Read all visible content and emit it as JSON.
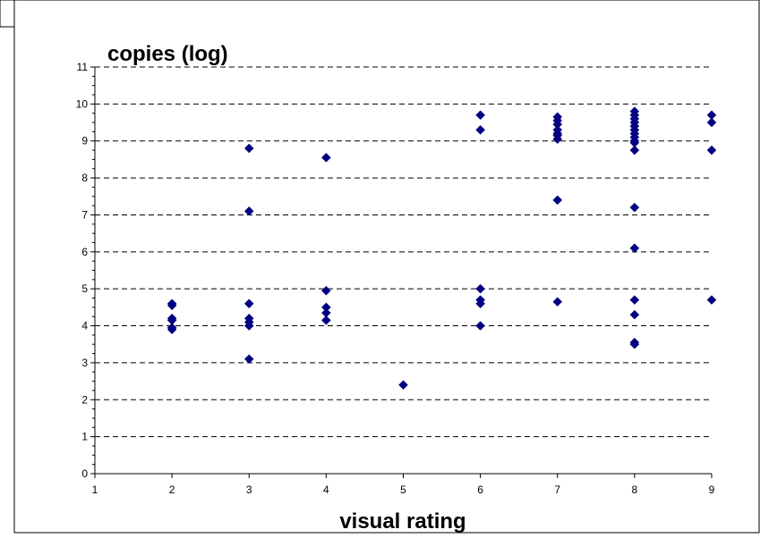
{
  "chart_data": {
    "type": "scatter",
    "title": "",
    "xlabel": "visual rating",
    "ylabel": "copies (log)",
    "xlim": [
      1,
      9
    ],
    "ylim": [
      0,
      11
    ],
    "x_ticks": [
      "1",
      "2",
      "3",
      "4",
      "5",
      "6",
      "7",
      "8",
      "9"
    ],
    "y_ticks": [
      "0",
      "1",
      "2",
      "3",
      "4",
      "5",
      "6",
      "7",
      "8",
      "9",
      "10",
      "11"
    ],
    "grid": "horizontal dashed",
    "legend": "none",
    "marker": "diamond",
    "marker_color": "#000080",
    "series": [
      {
        "points": [
          [
            2,
            4.6
          ],
          [
            2,
            4.55
          ],
          [
            2,
            4.2
          ],
          [
            2,
            4.15
          ],
          [
            2,
            3.95
          ],
          [
            2,
            3.9
          ],
          [
            3,
            8.8
          ],
          [
            3,
            7.1
          ],
          [
            3,
            4.6
          ],
          [
            3,
            4.2
          ],
          [
            3,
            4.1
          ],
          [
            3,
            4.0
          ],
          [
            3,
            3.1
          ],
          [
            4,
            8.55
          ],
          [
            4,
            4.95
          ],
          [
            4,
            4.5
          ],
          [
            4,
            4.35
          ],
          [
            4,
            4.15
          ],
          [
            5,
            2.4
          ],
          [
            6,
            9.7
          ],
          [
            6,
            9.3
          ],
          [
            6,
            5.0
          ],
          [
            6,
            4.7
          ],
          [
            6,
            4.6
          ],
          [
            6,
            4.0
          ],
          [
            7,
            9.65
          ],
          [
            7,
            9.55
          ],
          [
            7,
            9.45
          ],
          [
            7,
            9.3
          ],
          [
            7,
            9.2
          ],
          [
            7,
            9.15
          ],
          [
            7,
            9.05
          ],
          [
            7,
            7.4
          ],
          [
            7,
            4.65
          ],
          [
            8,
            9.8
          ],
          [
            8,
            9.7
          ],
          [
            8,
            9.6
          ],
          [
            8,
            9.5
          ],
          [
            8,
            9.4
          ],
          [
            8,
            9.3
          ],
          [
            8,
            9.2
          ],
          [
            8,
            9.1
          ],
          [
            8,
            9.0
          ],
          [
            8,
            8.95
          ],
          [
            8,
            8.75
          ],
          [
            8,
            7.2
          ],
          [
            8,
            6.1
          ],
          [
            8,
            4.7
          ],
          [
            8,
            4.3
          ],
          [
            8,
            3.55
          ],
          [
            8,
            3.5
          ],
          [
            9,
            9.7
          ],
          [
            9,
            9.5
          ],
          [
            9,
            8.75
          ],
          [
            9,
            4.7
          ]
        ]
      }
    ]
  }
}
